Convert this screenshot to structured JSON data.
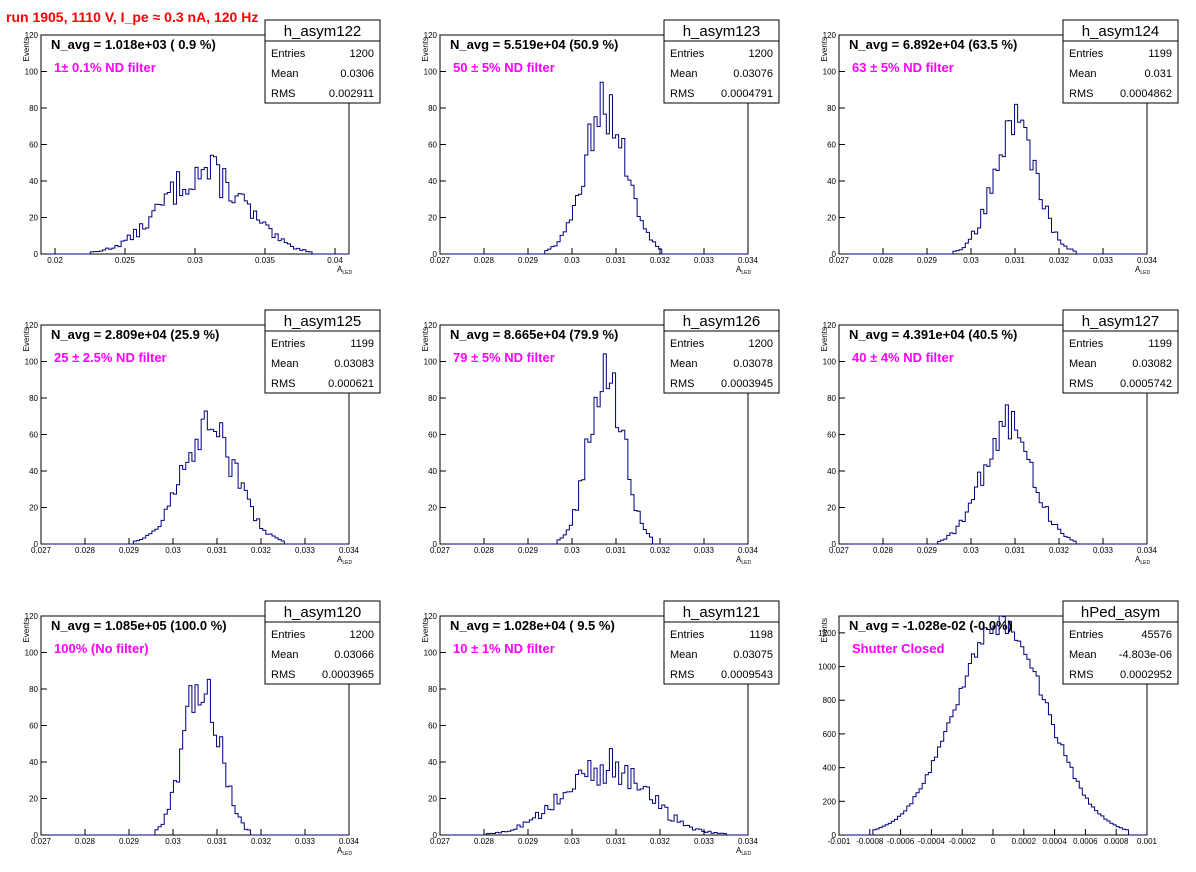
{
  "page": {
    "title": "run 1905,  1110 V, I_pe ≈ 0.3 nA, 120 Hz"
  },
  "colors": {
    "title": "#ff0000",
    "line": "#000080",
    "note": "#ff00ff",
    "axis": "#000000",
    "background": "#ffffff"
  },
  "chart_data": [
    {
      "type": "histogram",
      "name": "h_asym122",
      "navg": "N_avg = 1.018e+03 ( 0.9 %)",
      "note": "1± 0.1% ND filter",
      "stats": {
        "entries": "1200",
        "mean": "0.0306",
        "rms": "0.002911"
      },
      "xlim": [
        0.019,
        0.041
      ],
      "ylim": [
        0,
        120
      ],
      "xticks": [
        0.02,
        0.025,
        0.03,
        0.035,
        0.04
      ],
      "xticklabels": [
        "0.02",
        "0.025",
        "0.03",
        "0.035",
        "0.04"
      ],
      "yticks": [
        0,
        20,
        40,
        60,
        80,
        100,
        120
      ],
      "xlabel": "A",
      "xlabel_sub": "LED",
      "ylabel": "Events",
      "peak_x": 0.0306,
      "peak_y": 45,
      "spread": 0.0029,
      "n_bins": 100,
      "noise": 0.25
    },
    {
      "type": "histogram",
      "name": "h_asym123",
      "navg": "N_avg = 5.519e+04 (50.9 %)",
      "note": "50 ± 5% ND filter",
      "stats": {
        "entries": "1200",
        "mean": "0.03076",
        "rms": "0.0004791"
      },
      "xlim": [
        0.027,
        0.034
      ],
      "ylim": [
        0,
        120
      ],
      "xticks": [
        0.027,
        0.028,
        0.029,
        0.03,
        0.031,
        0.032,
        0.033,
        0.034
      ],
      "xticklabels": [
        "0.027",
        "0.028",
        "0.029",
        "0.03",
        "0.031",
        "0.032",
        "0.033",
        "0.034"
      ],
      "yticks": [
        0,
        20,
        40,
        60,
        80,
        100,
        120
      ],
      "xlabel": "A",
      "xlabel_sub": "LED",
      "ylabel": "Events",
      "peak_x": 0.03076,
      "peak_y": 80,
      "spread": 0.00048,
      "n_bins": 100,
      "noise": 0.2
    },
    {
      "type": "histogram",
      "name": "h_asym124",
      "navg": "N_avg = 6.892e+04 (63.5 %)",
      "note": "63 ± 5% ND filter",
      "stats": {
        "entries": "1199",
        "mean": "0.031",
        "rms": "0.0004862"
      },
      "xlim": [
        0.027,
        0.034
      ],
      "ylim": [
        0,
        120
      ],
      "xticks": [
        0.027,
        0.028,
        0.029,
        0.03,
        0.031,
        0.032,
        0.033,
        0.034
      ],
      "xticklabels": [
        "0.027",
        "0.028",
        "0.029",
        "0.03",
        "0.031",
        "0.032",
        "0.033",
        "0.034"
      ],
      "yticks": [
        0,
        20,
        40,
        60,
        80,
        100,
        120
      ],
      "xlabel": "A",
      "xlabel_sub": "LED",
      "ylabel": "Events",
      "peak_x": 0.031,
      "peak_y": 70,
      "spread": 0.00049,
      "n_bins": 100,
      "noise": 0.2
    },
    {
      "type": "histogram",
      "name": "h_asym125",
      "navg": "N_avg = 2.809e+04 (25.9 %)",
      "note": "25 ± 2.5% ND filter",
      "stats": {
        "entries": "1199",
        "mean": "0.03083",
        "rms": "0.000621"
      },
      "xlim": [
        0.027,
        0.034
      ],
      "ylim": [
        0,
        120
      ],
      "xticks": [
        0.027,
        0.028,
        0.029,
        0.03,
        0.031,
        0.032,
        0.033,
        0.034
      ],
      "xticklabels": [
        "0.027",
        "0.028",
        "0.029",
        "0.03",
        "0.031",
        "0.032",
        "0.033",
        "0.034"
      ],
      "yticks": [
        0,
        20,
        40,
        60,
        80,
        100,
        120
      ],
      "xlabel": "A",
      "xlabel_sub": "LED",
      "ylabel": "Events",
      "peak_x": 0.03083,
      "peak_y": 62,
      "spread": 0.00062,
      "n_bins": 100,
      "noise": 0.2
    },
    {
      "type": "histogram",
      "name": "h_asym126",
      "navg": "N_avg = 8.665e+04 (79.9 %)",
      "note": "79 ± 5% ND filter",
      "stats": {
        "entries": "1200",
        "mean": "0.03078",
        "rms": "0.0003945"
      },
      "xlim": [
        0.027,
        0.034
      ],
      "ylim": [
        0,
        120
      ],
      "xticks": [
        0.027,
        0.028,
        0.029,
        0.03,
        0.031,
        0.032,
        0.033,
        0.034
      ],
      "xticklabels": [
        "0.027",
        "0.028",
        "0.029",
        "0.03",
        "0.031",
        "0.032",
        "0.033",
        "0.034"
      ],
      "yticks": [
        0,
        20,
        40,
        60,
        80,
        100,
        120
      ],
      "xlabel": "A",
      "xlabel_sub": "LED",
      "ylabel": "Events",
      "peak_x": 0.03078,
      "peak_y": 95,
      "spread": 0.00039,
      "n_bins": 100,
      "noise": 0.2
    },
    {
      "type": "histogram",
      "name": "h_asym127",
      "navg": "N_avg = 4.391e+04 (40.5 %)",
      "note": "40 ± 4% ND filter",
      "stats": {
        "entries": "1199",
        "mean": "0.03082",
        "rms": "0.0005742"
      },
      "xlim": [
        0.027,
        0.034
      ],
      "ylim": [
        0,
        120
      ],
      "xticks": [
        0.027,
        0.028,
        0.029,
        0.03,
        0.031,
        0.032,
        0.033,
        0.034
      ],
      "xticklabels": [
        "0.027",
        "0.028",
        "0.029",
        "0.03",
        "0.031",
        "0.032",
        "0.033",
        "0.034"
      ],
      "yticks": [
        0,
        20,
        40,
        60,
        80,
        100,
        120
      ],
      "xlabel": "A",
      "xlabel_sub": "LED",
      "ylabel": "Events",
      "peak_x": 0.03082,
      "peak_y": 64,
      "spread": 0.00057,
      "n_bins": 100,
      "noise": 0.2
    },
    {
      "type": "histogram",
      "name": "h_asym120",
      "navg": "N_avg = 1.085e+05 (100.0 %)",
      "note": "100% (No filter)",
      "stats": {
        "entries": "1200",
        "mean": "0.03066",
        "rms": "0.0003965"
      },
      "xlim": [
        0.027,
        0.034
      ],
      "ylim": [
        0,
        120
      ],
      "xticks": [
        0.027,
        0.028,
        0.029,
        0.03,
        0.031,
        0.032,
        0.033,
        0.034
      ],
      "xticklabels": [
        "0.027",
        "0.028",
        "0.029",
        "0.03",
        "0.031",
        "0.032",
        "0.033",
        "0.034"
      ],
      "yticks": [
        0,
        20,
        40,
        60,
        80,
        100,
        120
      ],
      "xlabel": "A",
      "xlabel_sub": "LED",
      "ylabel": "Events",
      "peak_x": 0.03066,
      "peak_y": 85,
      "spread": 0.0004,
      "n_bins": 100,
      "noise": 0.2
    },
    {
      "type": "histogram",
      "name": "h_asym121",
      "navg": "N_avg = 1.028e+04 ( 9.5 %)",
      "note": "10 ± 1% ND filter",
      "stats": {
        "entries": "1198",
        "mean": "0.03075",
        "rms": "0.0009543"
      },
      "xlim": [
        0.027,
        0.034
      ],
      "ylim": [
        0,
        120
      ],
      "xticks": [
        0.027,
        0.028,
        0.029,
        0.03,
        0.031,
        0.032,
        0.033,
        0.034
      ],
      "xticklabels": [
        "0.027",
        "0.028",
        "0.029",
        "0.03",
        "0.031",
        "0.032",
        "0.033",
        "0.034"
      ],
      "yticks": [
        0,
        20,
        40,
        60,
        80,
        100,
        120
      ],
      "xlabel": "A",
      "xlabel_sub": "LED",
      "ylabel": "Events",
      "peak_x": 0.03075,
      "peak_y": 37,
      "spread": 0.00095,
      "n_bins": 100,
      "noise": 0.3
    },
    {
      "type": "histogram",
      "name": "hPed_asym",
      "navg": "N_avg = -1.028e-02 (-0.0%)",
      "note": "Shutter Closed",
      "stats": {
        "entries": "45576",
        "mean": "-4.803e-06",
        "rms": "0.0002952"
      },
      "xlim": [
        -0.001,
        0.001
      ],
      "ylim": [
        0,
        1300
      ],
      "xticks": [
        -0.001,
        -0.0008,
        -0.0006,
        -0.0004,
        -0.0002,
        0,
        0.0002,
        0.0004,
        0.0006,
        0.0008,
        0.001
      ],
      "xticklabels": [
        "-0.001",
        "-0.0008",
        "-0.0006",
        "-0.0004",
        "-0.0002",
        "0",
        "0.0002",
        "0.0004",
        "0.0006",
        "0.0008",
        "0.001"
      ],
      "yticks": [
        0,
        200,
        400,
        600,
        800,
        1000,
        1200
      ],
      "xlabel": "",
      "xlabel_sub": "",
      "ylabel": "Events",
      "peak_x": 5e-05,
      "peak_y": 1250,
      "spread": 0.0003,
      "n_bins": 100,
      "noise": 0.05
    }
  ]
}
